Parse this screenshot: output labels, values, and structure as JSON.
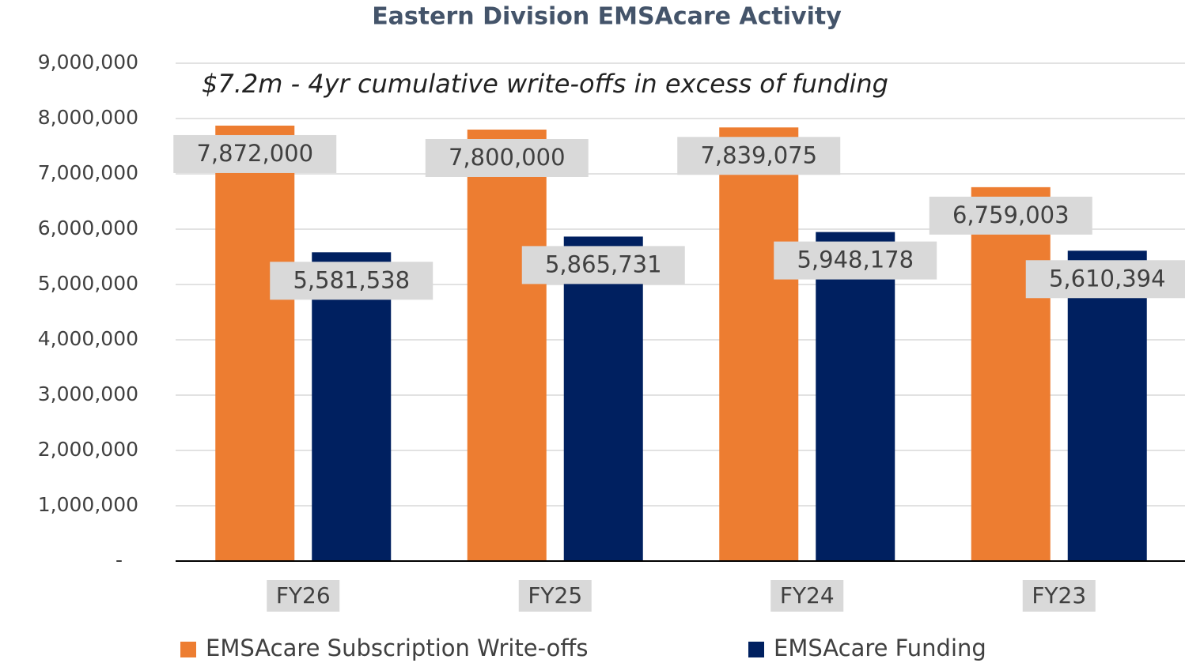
{
  "chart_data": {
    "type": "bar",
    "title": "Eastern Division EMSAcare Activity",
    "annotation": "$7.2m - 4yr cumulative write-offs in excess of funding",
    "categories": [
      "FY26",
      "FY25",
      "FY24",
      "FY23"
    ],
    "series": [
      {
        "name": "EMSAcare Subscription Write-offs",
        "color": "#ed7d31",
        "values": [
          7872000,
          7800000,
          7839075,
          6759003
        ],
        "value_labels": [
          "7,872,000",
          "7,800,000",
          "7,839,075",
          "6,759,003"
        ]
      },
      {
        "name": "EMSAcare Funding",
        "color": "#002060",
        "values": [
          5581538,
          5865731,
          5948178,
          5610394
        ],
        "value_labels": [
          "5,581,538",
          "5,865,731",
          "5,948,178",
          "5,610,394"
        ]
      }
    ],
    "ylim": [
      0,
      9000000
    ],
    "yticks": [
      {
        "value": 0,
        "label": "-"
      },
      {
        "value": 1000000,
        "label": "1,000,000"
      },
      {
        "value": 2000000,
        "label": "2,000,000"
      },
      {
        "value": 3000000,
        "label": "3,000,000"
      },
      {
        "value": 4000000,
        "label": "4,000,000"
      },
      {
        "value": 5000000,
        "label": "5,000,000"
      },
      {
        "value": 6000000,
        "label": "6,000,000"
      },
      {
        "value": 7000000,
        "label": "7,000,000"
      },
      {
        "value": 8000000,
        "label": "8,000,000"
      },
      {
        "value": 9000000,
        "label": "9,000,000"
      }
    ],
    "grid": true
  }
}
